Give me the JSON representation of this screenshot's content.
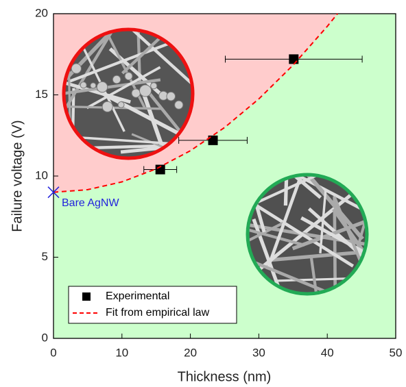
{
  "chart_data": {
    "type": "scatter",
    "xlabel": "Thickness (nm)",
    "ylabel": "Failure voltage (V)",
    "xlim": [
      0,
      50
    ],
    "ylim": [
      0,
      20
    ],
    "xticks": [
      0,
      10,
      20,
      30,
      40,
      50
    ],
    "yticks": [
      0,
      5,
      10,
      15,
      20
    ],
    "series": [
      {
        "name": "Experimental",
        "type": "scatter",
        "color": "#000000",
        "x": [
          15.6,
          23.3,
          35.1
        ],
        "values": [
          10.4,
          12.2,
          17.2
        ],
        "xerr": [
          2.4,
          5.0,
          10.0
        ]
      },
      {
        "name": "Fit from empirical law",
        "type": "line",
        "dashed": true,
        "color": "#ff0000",
        "x": [
          0,
          5,
          10,
          15,
          20,
          25,
          30,
          35,
          40,
          41.5
        ],
        "values": [
          9,
          9.16,
          9.64,
          10.44,
          11.56,
          12.99,
          14.75,
          16.83,
          19.22,
          20
        ]
      }
    ],
    "annotation": {
      "text": "Bare AgNW",
      "x": 0,
      "y": 9,
      "color": "#2222dd"
    },
    "region_above_color": "#ffcccc",
    "region_below_color": "#ccffcc",
    "legend": "lower left"
  }
}
